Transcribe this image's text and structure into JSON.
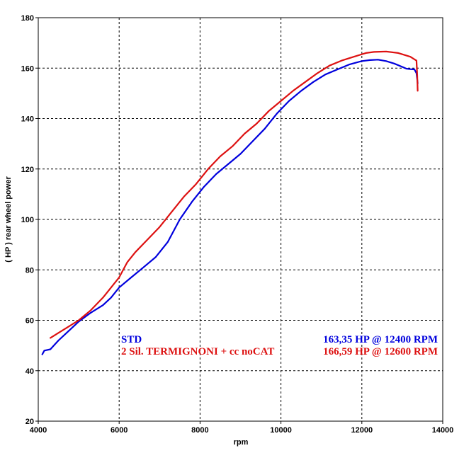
{
  "chart_data": {
    "type": "line",
    "title": "",
    "xlabel": "rpm",
    "ylabel": "( HP )   rear  wheel  power",
    "xlim": [
      4000,
      14000
    ],
    "ylim": [
      20,
      180
    ],
    "x_ticks": [
      4000,
      6000,
      8000,
      10000,
      12000,
      14000
    ],
    "y_ticks": [
      20,
      40,
      60,
      80,
      100,
      120,
      140,
      160,
      180
    ],
    "x_tick_labels": [
      "4000",
      "6000",
      "8000",
      "10000",
      "12000",
      "14000"
    ],
    "y_tick_labels": [
      "20",
      "40",
      "60",
      "80",
      "100",
      "120",
      "140",
      "160",
      "180"
    ],
    "grid": true,
    "legend_position": "bottom-right",
    "series": [
      {
        "name": "STD",
        "peak_label": "163,35 HP @ 12400 RPM",
        "color": "#0000dd",
        "x": [
          4100,
          4150,
          4300,
          4500,
          4700,
          5000,
          5300,
          5600,
          5800,
          6000,
          6300,
          6600,
          6900,
          7200,
          7500,
          7800,
          8100,
          8400,
          8700,
          9000,
          9300,
          9600,
          9900,
          10200,
          10500,
          10800,
          11100,
          11400,
          11700,
          12000,
          12200,
          12400,
          12600,
          12800,
          13000,
          13100,
          13200,
          13300,
          13350,
          13380
        ],
        "y": [
          46.5,
          48,
          48.5,
          52,
          55,
          59.5,
          63,
          66,
          69,
          73,
          77,
          81,
          85,
          91,
          100,
          107,
          113,
          118,
          122,
          126,
          131,
          136,
          142,
          147,
          151,
          154.5,
          157.5,
          159.5,
          161.5,
          162.8,
          163.2,
          163.35,
          162.8,
          161.8,
          160.5,
          159.8,
          159.6,
          159.5,
          158,
          154
        ]
      },
      {
        "name": "2 Sil. TERMIGNONI + cc noCAT",
        "peak_label": "166,59 HP @ 12600 RPM",
        "color": "#dd1111",
        "x": [
          4300,
          4500,
          4700,
          5000,
          5300,
          5600,
          5800,
          6000,
          6200,
          6400,
          6700,
          7000,
          7300,
          7600,
          7900,
          8200,
          8500,
          8800,
          9100,
          9400,
          9700,
          10000,
          10300,
          10600,
          10900,
          11200,
          11500,
          11800,
          12100,
          12300,
          12600,
          12900,
          13100,
          13200,
          13300,
          13350,
          13370,
          13380
        ],
        "y": [
          53,
          55,
          57,
          60,
          64,
          69,
          73,
          77,
          83,
          87,
          92,
          97,
          103,
          109,
          114,
          120,
          125,
          129,
          134,
          138,
          143,
          147,
          151,
          154.5,
          158,
          161,
          163,
          164.5,
          166,
          166.4,
          166.59,
          166,
          165,
          164.5,
          163.5,
          163,
          157,
          151
        ]
      }
    ]
  }
}
